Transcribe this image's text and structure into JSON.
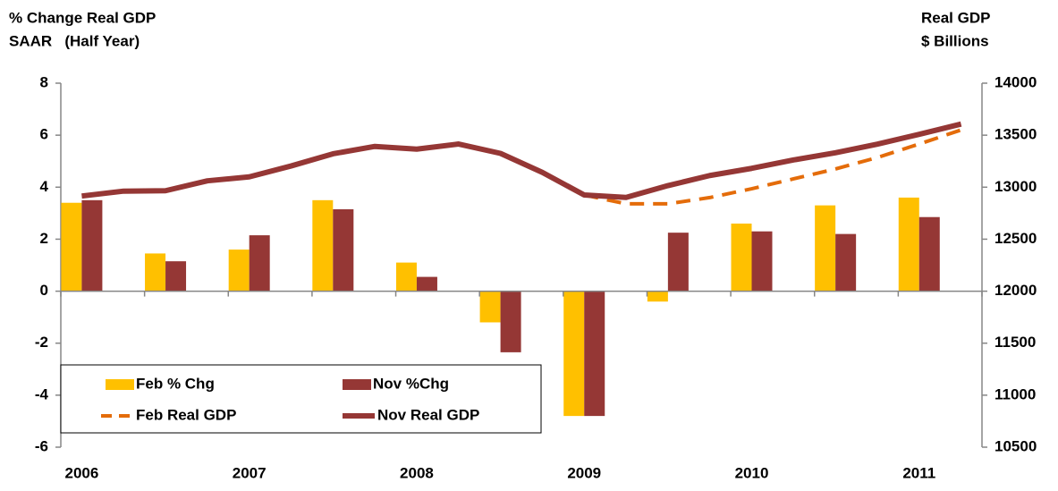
{
  "chart_data": {
    "type": "bar-line",
    "y_label": [
      "% Change Real GDP",
      "SAAR   (Half Year)"
    ],
    "y2_label": [
      "Real GDP",
      "$ Billions"
    ],
    "categories": [
      "2006",
      null,
      null,
      null,
      "2007",
      null,
      null,
      null,
      "2008",
      null,
      null,
      null,
      "2009",
      null,
      null,
      null,
      "2010",
      null,
      null,
      null,
      "2011",
      null
    ],
    "ylim": [
      -6,
      8
    ],
    "yticks": [
      -6,
      -4,
      -2,
      0,
      2,
      4,
      6,
      8
    ],
    "y2lim": [
      10500,
      14000
    ],
    "y2ticks": [
      10500,
      11000,
      11500,
      12000,
      12500,
      13000,
      13500,
      14000
    ],
    "legend": "lower left",
    "series": [
      {
        "name": "Feb % Chg",
        "type": "bar",
        "color": "#ffc000",
        "values": [
          3.4,
          null,
          1.45,
          null,
          1.6,
          null,
          3.5,
          null,
          1.1,
          null,
          -1.2,
          null,
          -4.8,
          null,
          -0.4,
          null,
          2.6,
          null,
          3.3,
          null,
          3.6,
          null
        ]
      },
      {
        "name": "Nov %Chg",
        "type": "bar",
        "color": "#953735",
        "values": [
          3.5,
          null,
          1.15,
          null,
          2.15,
          null,
          3.15,
          null,
          0.55,
          null,
          -2.35,
          null,
          -4.8,
          null,
          2.25,
          null,
          2.3,
          null,
          2.2,
          null,
          2.85,
          null
        ]
      },
      {
        "name": "Feb Real GDP",
        "type": "line",
        "axis": "y2",
        "dashed": true,
        "color": "#e46c0a",
        "values": [
          null,
          null,
          null,
          null,
          null,
          null,
          null,
          null,
          null,
          null,
          null,
          null,
          12925,
          12840,
          12840,
          12900,
          12985,
          13080,
          13175,
          13285,
          13415,
          13550
        ]
      },
      {
        "name": "Nov Real GDP",
        "type": "line",
        "axis": "y2",
        "dashed": false,
        "color": "#953735",
        "values": [
          12915,
          12962,
          12966,
          13061,
          13099,
          13204,
          13321,
          13392,
          13366,
          13415,
          13325,
          13142,
          12925,
          12901,
          13015,
          13112,
          13181,
          13262,
          13331,
          13414,
          13508,
          13607
        ]
      }
    ]
  }
}
